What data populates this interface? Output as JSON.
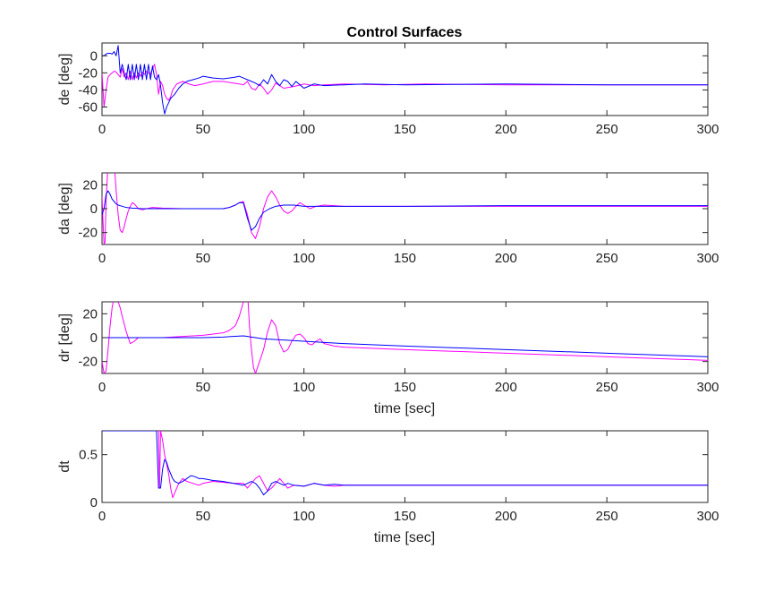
{
  "figure": {
    "title": "Control Surfaces"
  },
  "colors": {
    "series_commanded": "#ff00ff",
    "series_actual": "#0000ff",
    "axes_border": "#262626",
    "text": "#262626",
    "background": "#ffffff"
  },
  "chart_data": [
    {
      "type": "line",
      "title": "Control Surfaces",
      "xlabel": "",
      "ylabel": "de [deg]",
      "xlim": [
        0,
        300
      ],
      "ylim": [
        -70,
        15
      ],
      "xticks": [
        0,
        50,
        100,
        150,
        200,
        250,
        300
      ],
      "yticks": [
        -60,
        -40,
        -20,
        0
      ],
      "xtick_labels": [
        "0",
        "50",
        "100",
        "150",
        "200",
        "250",
        "300"
      ],
      "ytick_labels": [
        "-60",
        "-40",
        "-20",
        "0"
      ],
      "grid": false,
      "legend": "none",
      "series": [
        {
          "color": "#ff00ff",
          "x": [
            0,
            1,
            2,
            3,
            4,
            5,
            6,
            7,
            8,
            9,
            10,
            11,
            12,
            13,
            14,
            15,
            16,
            17,
            18,
            19,
            20,
            21,
            22,
            23,
            24,
            25,
            26,
            27,
            28,
            29,
            30,
            31,
            32,
            33,
            34,
            35,
            37,
            40,
            43,
            46,
            50,
            55,
            60,
            65,
            68,
            70,
            72,
            74,
            76,
            78,
            80,
            82,
            84,
            86,
            88,
            90,
            95,
            100,
            105,
            110,
            120,
            140,
            160,
            200,
            250,
            300
          ],
          "y": [
            -20,
            -60,
            -40,
            -25,
            -22,
            -20,
            -18,
            -19,
            -22,
            -25,
            -15,
            -25,
            -20,
            -28,
            -18,
            -28,
            -20,
            -26,
            -20,
            -24,
            -19,
            -22,
            -18,
            -20,
            -22,
            -15,
            -10,
            -22,
            -45,
            -30,
            -35,
            -45,
            -50,
            -52,
            -48,
            -40,
            -33,
            -30,
            -33,
            -35,
            -33,
            -30,
            -30,
            -32,
            -33,
            -34,
            -30,
            -38,
            -40,
            -33,
            -38,
            -45,
            -40,
            -32,
            -35,
            -38,
            -36,
            -33,
            -35,
            -34,
            -33,
            -34,
            -33,
            -34,
            -34,
            -34
          ]
        },
        {
          "color": "#0000ff",
          "x": [
            0,
            1,
            2,
            3,
            4,
            5,
            6,
            7,
            8,
            9,
            10,
            11,
            12,
            13,
            14,
            15,
            16,
            17,
            18,
            19,
            20,
            21,
            22,
            23,
            24,
            25,
            26,
            27,
            28,
            29,
            30,
            31,
            32,
            33,
            34,
            36,
            38,
            40,
            42,
            45,
            48,
            50,
            55,
            60,
            63,
            66,
            68,
            70,
            72,
            74,
            76,
            78,
            80,
            82,
            84,
            86,
            88,
            90,
            92,
            94,
            96,
            98,
            100,
            105,
            110,
            120,
            130,
            150,
            200,
            250,
            300
          ],
          "y": [
            0,
            0,
            2,
            3,
            3,
            2,
            5,
            0,
            12,
            -20,
            -10,
            -20,
            -28,
            -10,
            -28,
            -10,
            -28,
            -10,
            -28,
            -10,
            -28,
            -10,
            -28,
            -10,
            -28,
            -12,
            -25,
            -28,
            -22,
            -35,
            -55,
            -68,
            -60,
            -55,
            -50,
            -45,
            -38,
            -33,
            -30,
            -28,
            -26,
            -24,
            -26,
            -27,
            -26,
            -25,
            -24,
            -26,
            -28,
            -30,
            -32,
            -35,
            -28,
            -33,
            -22,
            -30,
            -35,
            -28,
            -30,
            -36,
            -30,
            -34,
            -38,
            -33,
            -35,
            -34,
            -33,
            -34,
            -33,
            -34,
            -34
          ]
        }
      ]
    },
    {
      "type": "line",
      "title": "",
      "xlabel": "",
      "ylabel": "da [deg]",
      "xlim": [
        0,
        300
      ],
      "ylim": [
        -30,
        30
      ],
      "xticks": [
        0,
        50,
        100,
        150,
        200,
        250,
        300
      ],
      "yticks": [
        -20,
        0,
        20
      ],
      "xtick_labels": [
        "0",
        "50",
        "100",
        "150",
        "200",
        "250",
        "300"
      ],
      "ytick_labels": [
        "-20",
        "0",
        "20"
      ],
      "grid": false,
      "legend": "none",
      "series": [
        {
          "color": "#ff00ff",
          "x": [
            0,
            1,
            1.5,
            2,
            3,
            4,
            5,
            6,
            7,
            8,
            9,
            10,
            11,
            12,
            13,
            14,
            15,
            16,
            17,
            18,
            20,
            22,
            25,
            30,
            40,
            50,
            60,
            63,
            66,
            68,
            70,
            72,
            74,
            76,
            78,
            80,
            82,
            84,
            86,
            88,
            90,
            92,
            94,
            96,
            98,
            100,
            103,
            106,
            110,
            120,
            150,
            200,
            250,
            300
          ],
          "y": [
            10,
            -30,
            -28,
            5,
            40,
            60,
            60,
            40,
            15,
            -5,
            -18,
            -20,
            -15,
            -8,
            -2,
            2,
            5,
            4,
            2,
            0,
            -1,
            0,
            1,
            0.5,
            0,
            0,
            0,
            1,
            3,
            5,
            6,
            -5,
            -20,
            -25,
            -15,
            0,
            10,
            15,
            10,
            3,
            -2,
            -4,
            -2,
            2,
            5,
            3,
            0,
            2,
            3,
            2,
            2,
            2,
            2,
            2
          ]
        },
        {
          "color": "#0000ff",
          "x": [
            0,
            1,
            2,
            3,
            4,
            5,
            6,
            7,
            8,
            10,
            12,
            15,
            20,
            25,
            30,
            40,
            50,
            60,
            63,
            66,
            68,
            70,
            72,
            74,
            76,
            78,
            80,
            83,
            86,
            90,
            95,
            100,
            110,
            120,
            150,
            200,
            250,
            300
          ],
          "y": [
            -5,
            0,
            12,
            15,
            12,
            8,
            6,
            4,
            3,
            2,
            1,
            0.5,
            0,
            0,
            0,
            0,
            0,
            0,
            1,
            3,
            5,
            5,
            -8,
            -18,
            -15,
            -8,
            -3,
            0,
            2,
            3,
            3,
            2,
            2,
            2,
            2,
            2.5,
            2.5,
            2.5
          ]
        }
      ]
    },
    {
      "type": "line",
      "title": "",
      "xlabel": "time [sec]",
      "ylabel": "dr [deg]",
      "xlim": [
        0,
        300
      ],
      "ylim": [
        -30,
        30
      ],
      "xticks": [
        0,
        50,
        100,
        150,
        200,
        250,
        300
      ],
      "yticks": [
        -20,
        0,
        20
      ],
      "xtick_labels": [
        "0",
        "50",
        "100",
        "150",
        "200",
        "250",
        "300"
      ],
      "ytick_labels": [
        "-20",
        "0",
        "20"
      ],
      "grid": false,
      "legend": "none",
      "series": [
        {
          "color": "#ff00ff",
          "x": [
            0,
            1,
            2,
            3,
            4,
            5,
            6,
            7,
            8,
            9,
            10,
            12,
            14,
            16,
            18,
            20,
            25,
            30,
            40,
            50,
            55,
            60,
            63,
            66,
            68,
            70,
            72,
            73,
            74,
            75,
            76,
            78,
            80,
            82,
            84,
            86,
            88,
            90,
            92,
            94,
            96,
            98,
            100,
            102,
            104,
            106,
            108,
            110,
            115,
            120,
            150,
            200,
            250,
            300
          ],
          "y": [
            -20,
            -30,
            -28,
            -10,
            10,
            25,
            35,
            35,
            30,
            25,
            18,
            5,
            -5,
            -3,
            0,
            0,
            0,
            0,
            1,
            2,
            3,
            4,
            6,
            10,
            18,
            30,
            40,
            10,
            -10,
            -25,
            -30,
            -20,
            -10,
            5,
            15,
            10,
            -5,
            -12,
            -10,
            -3,
            2,
            3,
            0,
            -5,
            -6,
            -3,
            -1,
            -5,
            -7,
            -8,
            -10,
            -13,
            -16,
            -19
          ]
        },
        {
          "color": "#0000ff",
          "x": [
            0,
            10,
            20,
            30,
            40,
            50,
            60,
            65,
            70,
            72,
            74,
            76,
            80,
            90,
            100,
            110,
            120,
            150,
            200,
            250,
            300
          ],
          "y": [
            0,
            0,
            0,
            0,
            0,
            0,
            0.5,
            1,
            1.5,
            1,
            0.5,
            0,
            -1,
            -2,
            -3,
            -4,
            -5,
            -7,
            -10,
            -13,
            -16
          ]
        }
      ]
    },
    {
      "type": "line",
      "title": "",
      "xlabel": "time [sec]",
      "ylabel": "dt",
      "xlim": [
        0,
        300
      ],
      "ylim": [
        0,
        0.75
      ],
      "xticks": [
        0,
        50,
        100,
        150,
        200,
        250,
        300
      ],
      "yticks": [
        0,
        0.5
      ],
      "xtick_labels": [
        "0",
        "50",
        "100",
        "150",
        "200",
        "250",
        "300"
      ],
      "ytick_labels": [
        "0",
        "0.5"
      ],
      "grid": false,
      "legend": "none",
      "series": [
        {
          "color": "#ff00ff",
          "x": [
            0,
            25,
            27,
            28,
            28.5,
            29,
            30,
            31,
            32,
            33,
            34,
            35,
            36,
            37,
            38,
            40,
            42,
            45,
            48,
            50,
            55,
            60,
            65,
            70,
            72,
            74,
            76,
            78,
            80,
            82,
            84,
            86,
            88,
            90,
            92,
            95,
            100,
            105,
            110,
            115,
            120,
            140,
            160,
            200,
            250,
            300
          ],
          "y": [
            0.75,
            0.75,
            0.75,
            0.75,
            0.15,
            0.75,
            0.65,
            0.5,
            0.4,
            0.3,
            0.15,
            0.05,
            0.1,
            0.15,
            0.2,
            0.25,
            0.22,
            0.2,
            0.18,
            0.2,
            0.22,
            0.21,
            0.2,
            0.2,
            0.15,
            0.2,
            0.25,
            0.28,
            0.2,
            0.12,
            0.15,
            0.2,
            0.25,
            0.2,
            0.15,
            0.18,
            0.17,
            0.2,
            0.18,
            0.17,
            0.18,
            0.18,
            0.18,
            0.18,
            0.18,
            0.18
          ]
        },
        {
          "color": "#0000ff",
          "x": [
            0,
            25,
            27,
            28,
            29,
            30,
            31,
            32,
            33,
            34,
            35,
            36,
            38,
            40,
            42,
            44,
            46,
            48,
            50,
            55,
            60,
            65,
            70,
            72,
            74,
            76,
            78,
            80,
            82,
            84,
            86,
            88,
            90,
            92,
            95,
            100,
            105,
            110,
            115,
            120,
            140,
            160,
            200,
            250,
            300
          ],
          "y": [
            0.75,
            0.75,
            0.75,
            0.15,
            0.15,
            0.35,
            0.45,
            0.42,
            0.35,
            0.3,
            0.25,
            0.22,
            0.2,
            0.22,
            0.25,
            0.28,
            0.27,
            0.25,
            0.25,
            0.23,
            0.22,
            0.2,
            0.18,
            0.2,
            0.22,
            0.2,
            0.15,
            0.08,
            0.12,
            0.2,
            0.22,
            0.2,
            0.18,
            0.2,
            0.18,
            0.17,
            0.2,
            0.18,
            0.19,
            0.18,
            0.18,
            0.18,
            0.18,
            0.18,
            0.18
          ]
        }
      ]
    }
  ]
}
